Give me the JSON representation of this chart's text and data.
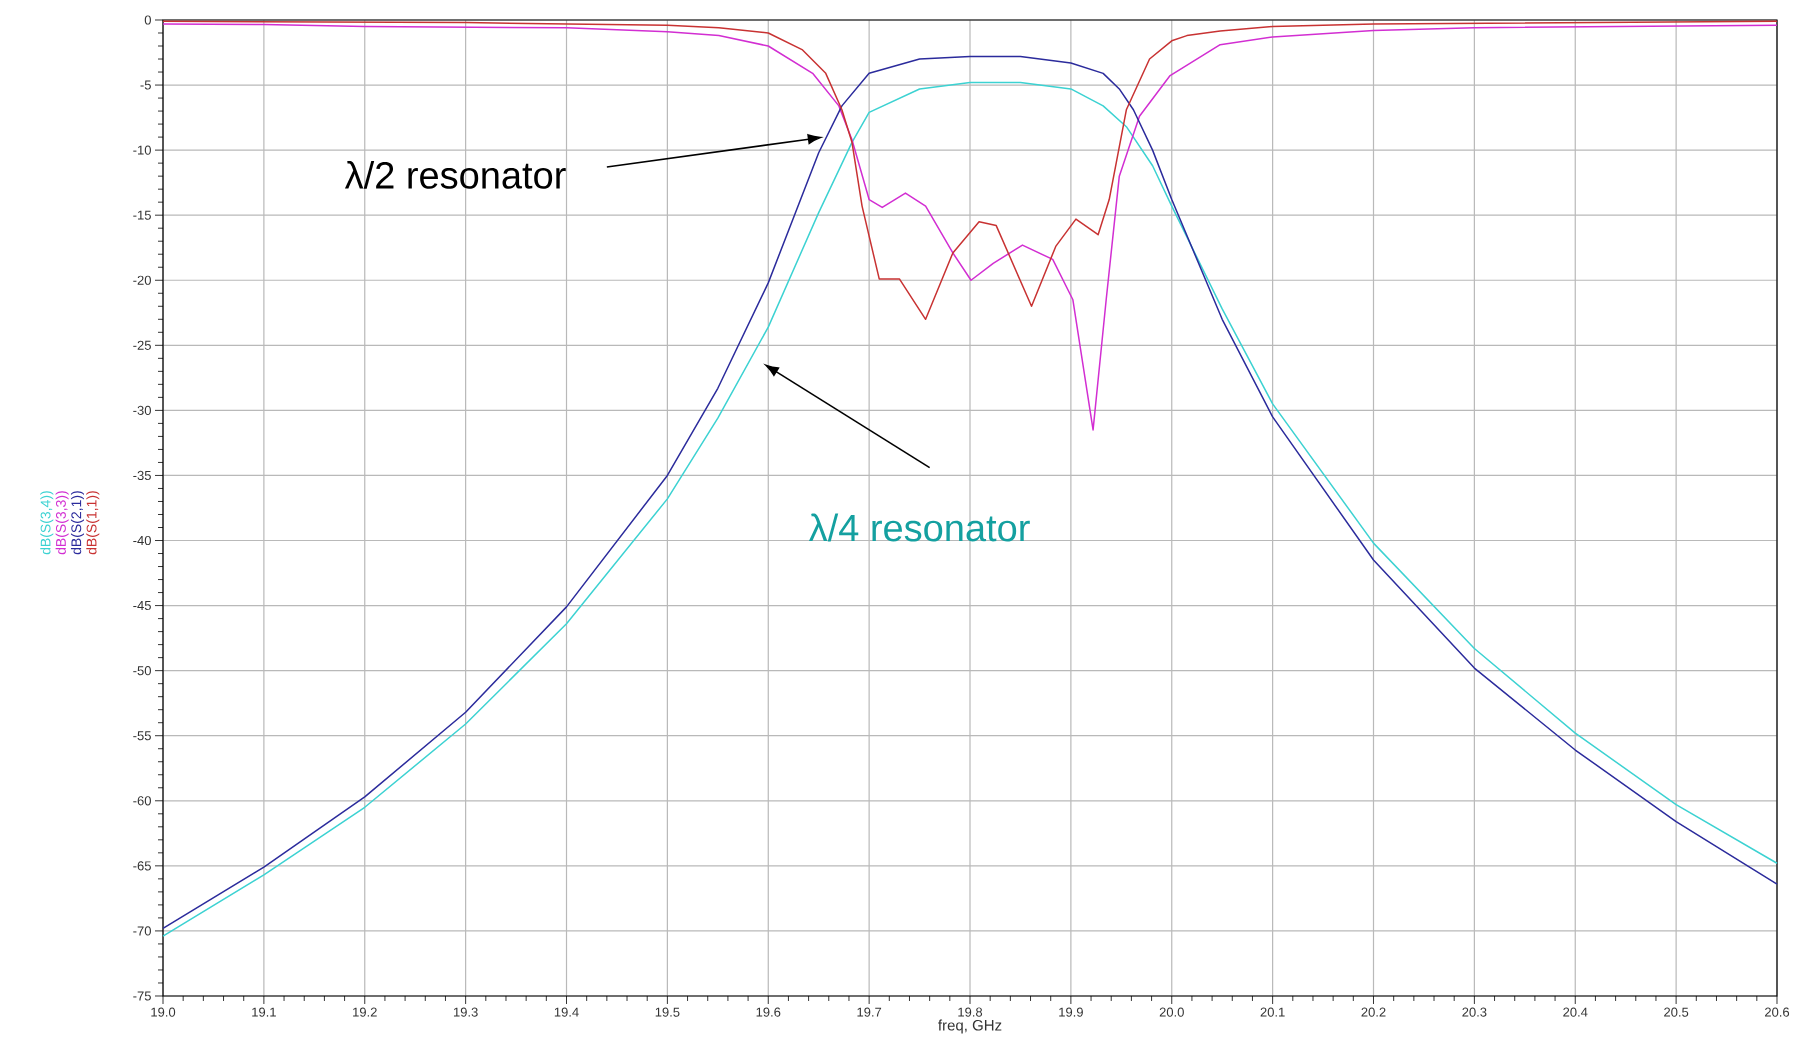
{
  "chart_data": {
    "type": "line",
    "xlabel": "freq, GHz",
    "xlim": [
      19.0,
      20.6
    ],
    "ylim": [
      -75,
      0
    ],
    "xticks": [
      {
        "value": 19.0,
        "label": "19.0"
      },
      19.1,
      19.2,
      19.3,
      19.4,
      19.5,
      19.6,
      19.7,
      19.8,
      19.9,
      {
        "value": 20.0,
        "label": "20.0"
      },
      20.1,
      20.2,
      20.3,
      20.4,
      20.5,
      20.6
    ],
    "yticks": [
      -75,
      -70,
      -65,
      -60,
      -55,
      -50,
      -45,
      -40,
      -35,
      -30,
      -25,
      -20,
      -15,
      -10,
      -5,
      0
    ],
    "grid": true,
    "legend": "left",
    "line_style": "solid",
    "marker": "none",
    "annotations": [
      "λ/2 resonator",
      "λ/4 resonator"
    ],
    "series": [
      {
        "name": "dB(S(3,4))",
        "color": "#3cd2d2",
        "x": [
          19.0,
          19.1,
          19.2,
          19.3,
          19.4,
          19.5,
          19.55,
          19.6,
          19.65,
          19.683,
          19.7,
          19.75,
          19.8,
          19.85,
          19.9,
          19.932,
          19.955,
          19.981,
          20.0,
          20.05,
          20.1,
          20.2,
          20.3,
          20.4,
          20.5,
          20.6
        ],
        "values": [
          -70.4,
          -65.7,
          -60.5,
          -54.1,
          -46.4,
          -36.8,
          -30.6,
          -23.6,
          -14.8,
          -9.4,
          -7.1,
          -5.3,
          -4.8,
          -4.8,
          -5.3,
          -6.6,
          -8.2,
          -11.2,
          -14.3,
          -22.2,
          -29.5,
          -40.2,
          -48.3,
          -54.8,
          -60.3,
          -64.8
        ]
      },
      {
        "name": "dB(S(3,3))",
        "color": "#d22ed2",
        "x": [
          19.0,
          19.1,
          19.2,
          19.4,
          19.5,
          19.551,
          19.6,
          19.644,
          19.67,
          19.683,
          19.7,
          19.713,
          19.736,
          19.756,
          19.783,
          19.801,
          19.823,
          19.852,
          19.882,
          19.902,
          19.922,
          19.935,
          19.948,
          19.968,
          19.998,
          20.048,
          20.1,
          20.2,
          20.3,
          20.6
        ],
        "values": [
          -0.3,
          -0.35,
          -0.5,
          -0.6,
          -0.9,
          -1.2,
          -2.0,
          -4.1,
          -6.6,
          -9.2,
          -13.8,
          -14.4,
          -13.3,
          -14.3,
          -17.9,
          -20.0,
          -18.7,
          -17.3,
          -18.4,
          -21.5,
          -31.5,
          -21.5,
          -12.0,
          -7.4,
          -4.3,
          -1.9,
          -1.3,
          -0.8,
          -0.6,
          -0.4
        ]
      },
      {
        "name": "dB(S(2,1))",
        "color": "#2b2b9c",
        "x": [
          19.0,
          19.1,
          19.2,
          19.3,
          19.4,
          19.5,
          19.55,
          19.6,
          19.65,
          19.673,
          19.7,
          19.75,
          19.8,
          19.85,
          19.9,
          19.932,
          19.948,
          19.962,
          19.981,
          20.0,
          20.05,
          20.1,
          20.2,
          20.3,
          20.4,
          20.5,
          20.6
        ],
        "values": [
          -69.8,
          -65.1,
          -59.7,
          -53.2,
          -45.1,
          -35.0,
          -28.3,
          -20.2,
          -10.2,
          -6.6,
          -4.1,
          -3.0,
          -2.8,
          -2.8,
          -3.3,
          -4.1,
          -5.3,
          -6.9,
          -10.0,
          -13.8,
          -23.0,
          -30.5,
          -41.5,
          -49.8,
          -56.1,
          -61.6,
          -66.4
        ]
      },
      {
        "name": "dB(S(1,1))",
        "color": "#c83232",
        "x": [
          19.0,
          19.3,
          19.5,
          19.551,
          19.6,
          19.634,
          19.657,
          19.673,
          19.683,
          19.693,
          19.71,
          19.73,
          19.756,
          19.783,
          19.809,
          19.826,
          19.861,
          19.885,
          19.905,
          19.927,
          19.938,
          19.955,
          19.978,
          20.0,
          20.015,
          20.048,
          20.1,
          20.2,
          20.6
        ],
        "values": [
          -0.1,
          -0.2,
          -0.4,
          -0.6,
          -1.0,
          -2.3,
          -4.1,
          -6.9,
          -9.4,
          -14.3,
          -19.9,
          -19.9,
          -23.0,
          -17.9,
          -15.5,
          -15.8,
          -22.0,
          -17.4,
          -15.3,
          -16.5,
          -13.8,
          -6.9,
          -3.0,
          -1.6,
          -1.2,
          -0.85,
          -0.5,
          -0.3,
          -0.1
        ]
      }
    ]
  }
}
